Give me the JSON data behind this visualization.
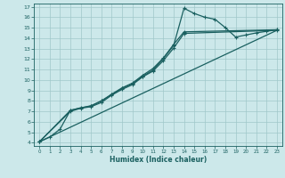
{
  "xlabel": "Humidex (Indice chaleur)",
  "bg_color": "#cce8ea",
  "grid_color": "#a0c8ca",
  "line_color": "#1a6060",
  "xlim": [
    -0.5,
    23.5
  ],
  "ylim": [
    3.7,
    17.3
  ],
  "xticks": [
    0,
    1,
    2,
    3,
    4,
    5,
    6,
    7,
    8,
    9,
    10,
    11,
    12,
    13,
    14,
    15,
    16,
    17,
    18,
    19,
    20,
    21,
    22,
    23
  ],
  "yticks": [
    4,
    5,
    6,
    7,
    8,
    9,
    10,
    11,
    12,
    13,
    14,
    15,
    16,
    17
  ],
  "line1_x": [
    0,
    1,
    2,
    3,
    4,
    5,
    6,
    7,
    8,
    9,
    10,
    11,
    12,
    13,
    14,
    15,
    16,
    17,
    18,
    19,
    20,
    21,
    22,
    23
  ],
  "line1_y": [
    4.1,
    4.55,
    5.3,
    7.1,
    7.35,
    7.5,
    8.0,
    8.6,
    9.2,
    9.65,
    10.35,
    10.95,
    12.05,
    13.3,
    16.85,
    16.35,
    16.0,
    15.8,
    15.0,
    14.1,
    14.3,
    14.5,
    14.65,
    14.8
  ],
  "line2_x": [
    0,
    3,
    5,
    6,
    7,
    8,
    9,
    10,
    11,
    12,
    13,
    14,
    23
  ],
  "line2_y": [
    4.1,
    7.1,
    7.55,
    8.0,
    8.65,
    9.25,
    9.7,
    10.45,
    11.1,
    12.1,
    13.4,
    14.6,
    14.8
  ],
  "line3_x": [
    0,
    3,
    4,
    5,
    6,
    7,
    8,
    9,
    10,
    11,
    12,
    13,
    14,
    23
  ],
  "line3_y": [
    4.1,
    7.0,
    7.3,
    7.45,
    7.85,
    8.55,
    9.1,
    9.55,
    10.3,
    10.85,
    11.85,
    13.05,
    14.45,
    14.75
  ],
  "line4_x": [
    0,
    23
  ],
  "line4_y": [
    4.1,
    14.75
  ]
}
